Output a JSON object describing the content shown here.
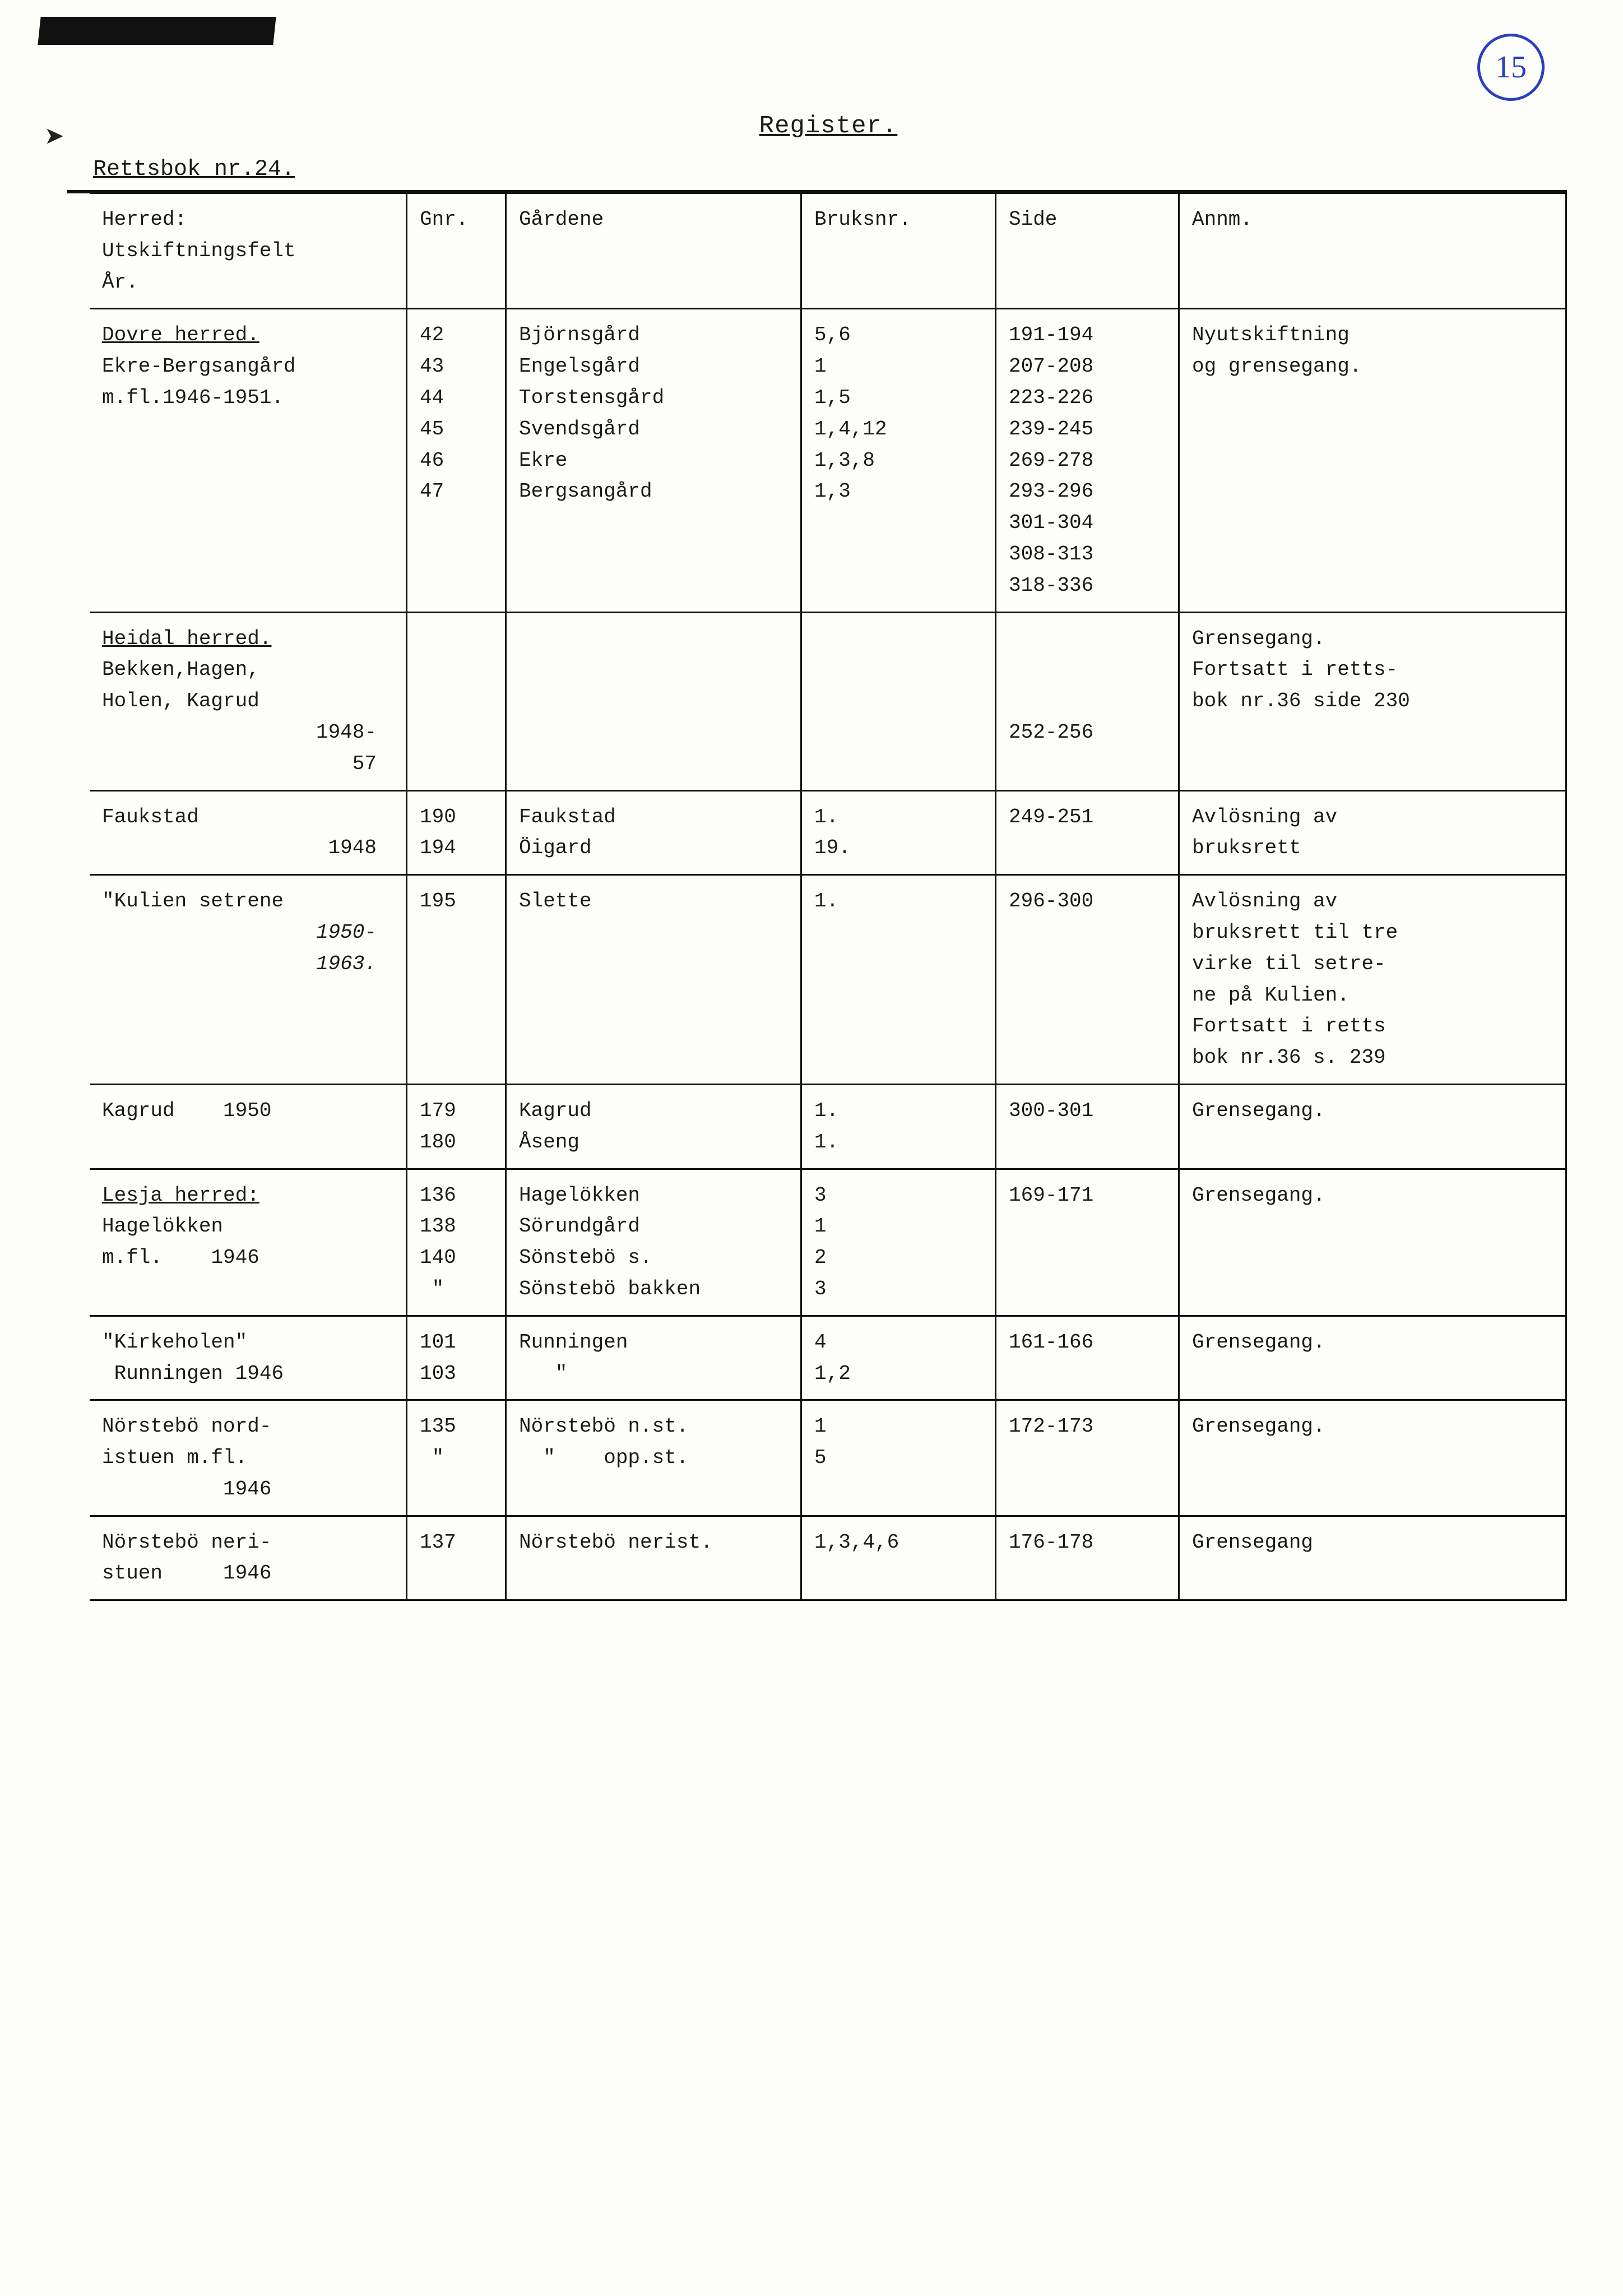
{
  "page_number": "15",
  "title": "Register.",
  "subtitle": "Rettsbok nr.24.",
  "headers": {
    "herred": "Herred:\nUtskiftningsfelt\nÅr.",
    "gnr": "Gnr.",
    "gardene": "Gårdene",
    "bruksnr": "Bruksnr.",
    "side": "Side",
    "annm": "Annm."
  },
  "rows": [
    {
      "herred_u": "Dovre herred.",
      "herred": "Ekre-Bergsangård\nm.fl.1946-1951.",
      "gnr": "42\n43\n44\n45\n46\n47",
      "gardene": "Björnsgård\nEngelsgård\nTorstensgård\nSvendsgård\nEkre\nBergsangård",
      "bruksnr": "5,6\n1\n1,5\n1,4,12\n1,3,8\n1,3",
      "side": "191-194\n207-208\n223-226\n239-245\n269-278\n293-296\n301-304\n308-313\n318-336",
      "annm": "Nyutskiftning\nog grensegang."
    },
    {
      "herred_u": "Heidal herred.",
      "herred": "Bekken,Hagen,\nHolen, Kagrud",
      "herred_years": "1948-\n57",
      "gnr": "",
      "gardene": "",
      "bruksnr": "",
      "side": "\n\n\n252-256",
      "annm": "Grensegang.\nFortsatt i retts-\nbok nr.36 side 230"
    },
    {
      "herred": "Faukstad",
      "herred_years": "1948",
      "gnr": "190\n194",
      "gardene": "Faukstad\nÖigard",
      "bruksnr": "1.\n19.",
      "side": "249-251",
      "annm": "Avlösning av\nbruksrett"
    },
    {
      "herred": "\"Kulien setrene",
      "herred_years": "1950-\n1963.",
      "gnr": "195",
      "gardene": "Slette",
      "bruksnr": "1.",
      "side": "296-300",
      "annm": "Avlösning av\nbruksrett til tre\nvirke til setre-\nne på Kulien.\nFortsatt i retts\nbok nr.36 s. 239"
    },
    {
      "herred": "Kagrud    1950",
      "gnr": "179\n180",
      "gardene": "Kagrud\nÅseng",
      "bruksnr": "1.\n1.",
      "side": "300-301",
      "annm": "Grensegang."
    },
    {
      "herred_u": "Lesja herred:",
      "herred": "Hagelökken\nm.fl.    1946",
      "gnr": "136\n138\n140\n \"",
      "gardene": "Hagelökken\nSörundgård\nSönstebö s.\nSönstebö bakken",
      "bruksnr": "3\n1\n2\n3",
      "side": "169-171",
      "annm": "Grensegang."
    },
    {
      "herred": "\"Kirkeholen\"\n Runningen 1946",
      "gnr": "101\n103",
      "gardene": "Runningen\n   \"",
      "bruksnr": "4\n1,2",
      "side": "161-166",
      "annm": "Grensegang."
    },
    {
      "herred": "Nörstebö nord-\nistuen m.fl.\n          1946",
      "gnr": "135\n \"",
      "gardene": "Nörstebö n.st.\n  \"    opp.st.",
      "bruksnr": "1\n5",
      "side": "172-173",
      "annm": "Grensegang."
    },
    {
      "herred": "Nörstebö neri-\nstuen     1946",
      "gnr": "137",
      "gardene": "Nörstebö nerist.",
      "bruksnr": "1,3,4,6",
      "side": "176-178",
      "annm": "Grensegang"
    }
  ]
}
